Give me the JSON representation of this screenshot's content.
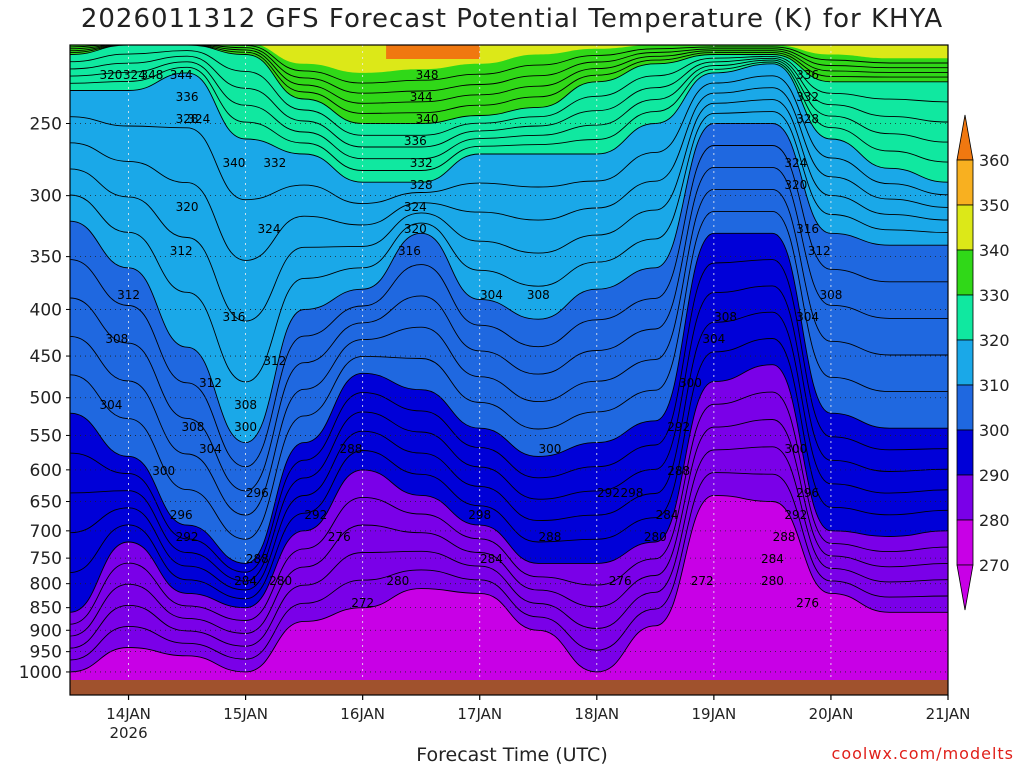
{
  "page": {
    "title": "2026011312 GFS Forecast Potential Temperature (K) for KHYA",
    "xlabel": "Forecast Time (UTC)",
    "credit": "coolwx.com/modelts"
  },
  "chart_data": {
    "type": "heatmap",
    "title": "2026011312 GFS Forecast Potential Temperature (K) for KHYA",
    "xlabel": "Forecast Time (UTC)",
    "ylabel": "",
    "x_ticks": [
      "14JAN",
      "15JAN",
      "16JAN",
      "17JAN",
      "18JAN",
      "19JAN",
      "20JAN",
      "21JAN"
    ],
    "x_tick_sublabel": "2026",
    "x_range": [
      "13JAN 12UTC",
      "21JAN 00UTC"
    ],
    "y_ticks": [
      250,
      300,
      350,
      400,
      450,
      500,
      550,
      600,
      650,
      700,
      750,
      800,
      850,
      900,
      950,
      1000
    ],
    "y_axis_inverted": true,
    "y_scale": "log-pressure",
    "colorbar": {
      "levels": [
        270,
        280,
        290,
        300,
        310,
        320,
        330,
        340,
        350,
        360
      ],
      "colors": [
        "#c800e6",
        "#7a00e8",
        "#0000d8",
        "#1f68e0",
        "#1aa8e8",
        "#10e8a0",
        "#30d818",
        "#dce818",
        "#f8b020",
        "#f07810"
      ],
      "extend": "both"
    },
    "contour_interval": 2,
    "contour_labels_shown": [
      348,
      344,
      340,
      336,
      332,
      328,
      324,
      320,
      316,
      312,
      308,
      304,
      300,
      298,
      296,
      292,
      288,
      284,
      280,
      276,
      272
    ],
    "grid": true,
    "columns_x": [
      0,
      0.5,
      1,
      1.5,
      2,
      2.5,
      3,
      3.5,
      4,
      4.5,
      5,
      5.5,
      6,
      6.5,
      7,
      7.5
    ],
    "isentrope_pressure_hpa": {
      "280": [
        1000,
        940,
        960,
        1000,
        880,
        850,
        810,
        820,
        900,
        1000,
        890,
        640,
        650,
        820,
        860,
        860
      ],
      "290": [
        860,
        720,
        820,
        850,
        700,
        600,
        640,
        690,
        760,
        760,
        720,
        480,
        460,
        700,
        710,
        700
      ],
      "300": [
        520,
        580,
        690,
        760,
        560,
        470,
        490,
        540,
        580,
        560,
        530,
        330,
        330,
        520,
        540,
        540
      ],
      "310": [
        320,
        360,
        440,
        560,
        400,
        380,
        330,
        390,
        410,
        380,
        360,
        250,
        250,
        330,
        340,
        340
      ],
      "320": [
        230,
        230,
        220,
        260,
        270,
        290,
        290,
        270,
        270,
        270,
        250,
        220,
        215,
        260,
        280,
        290
      ],
      "330": [
        210,
        205,
        205,
        210,
        235,
        250,
        250,
        245,
        240,
        225,
        215,
        210,
        210,
        225,
        225,
        225
      ],
      "340": [
        205,
        204,
        204,
        204,
        215,
        220,
        218,
        215,
        210,
        207,
        205,
        205,
        205,
        210,
        212,
        212
      ]
    }
  }
}
